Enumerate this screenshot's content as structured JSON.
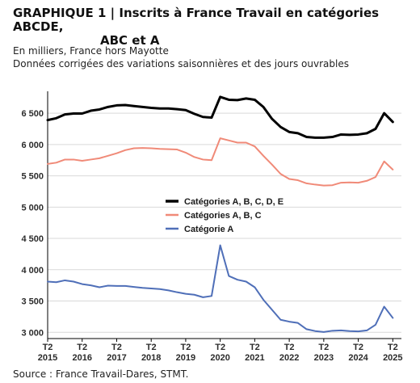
{
  "header": {
    "title_line1": "GRAPHIQUE 1 | Inscrits à France Travail en catégories ABCDE,",
    "title_line2": "ABC et A",
    "subtitle_line1": "En milliers, France hors Mayotte",
    "subtitle_line2": "Données corrigées des variations saisonnières et des jours ouvrables"
  },
  "footer": {
    "source": "Source : France Travail-Dares, STMT."
  },
  "chart_data": {
    "type": "line",
    "title": "GRAPHIQUE 1 | Inscrits à France Travail en catégories ABCDE, ABC et A",
    "xlabel": "",
    "ylabel": "",
    "ylim": [
      2900,
      6850
    ],
    "xlim": [
      2015.25,
      2025.5
    ],
    "grid": true,
    "legend_position": "center",
    "x_ticks": [
      {
        "value": 2015.25,
        "label_top": "T2",
        "label_bottom": "2015"
      },
      {
        "value": 2016.25,
        "label_top": "T2",
        "label_bottom": "2016"
      },
      {
        "value": 2017.25,
        "label_top": "T2",
        "label_bottom": "2017"
      },
      {
        "value": 2018.25,
        "label_top": "T2",
        "label_bottom": "2018"
      },
      {
        "value": 2019.25,
        "label_top": "T2",
        "label_bottom": "2019"
      },
      {
        "value": 2020.25,
        "label_top": "T2",
        "label_bottom": "2020"
      },
      {
        "value": 2021.25,
        "label_top": "T2",
        "label_bottom": "2021"
      },
      {
        "value": 2022.25,
        "label_top": "T2",
        "label_bottom": "2022"
      },
      {
        "value": 2023.25,
        "label_top": "T2",
        "label_bottom": "2023"
      },
      {
        "value": 2024.25,
        "label_top": "T2",
        "label_bottom": "2024"
      },
      {
        "value": 2025.25,
        "label_top": "T2",
        "label_bottom": "2025"
      }
    ],
    "y_ticks": [
      {
        "value": 3000,
        "label": "3 000"
      },
      {
        "value": 3500,
        "label": "3 500"
      },
      {
        "value": 4000,
        "label": "4 000"
      },
      {
        "value": 4500,
        "label": "4 500"
      },
      {
        "value": 5000,
        "label": "5 000"
      },
      {
        "value": 5500,
        "label": "5 500"
      },
      {
        "value": 6000,
        "label": "6 000"
      },
      {
        "value": 6500,
        "label": "6 500"
      }
    ],
    "series": [
      {
        "name": "Catégories A, B, C, D, E",
        "color": "#000000",
        "stroke_width": 3,
        "points": [
          [
            2015.25,
            6390
          ],
          [
            2015.5,
            6420
          ],
          [
            2015.75,
            6480
          ],
          [
            2016.0,
            6495
          ],
          [
            2016.25,
            6495
          ],
          [
            2016.5,
            6540
          ],
          [
            2016.75,
            6560
          ],
          [
            2017.0,
            6600
          ],
          [
            2017.25,
            6625
          ],
          [
            2017.5,
            6630
          ],
          [
            2017.75,
            6615
          ],
          [
            2018.0,
            6600
          ],
          [
            2018.25,
            6585
          ],
          [
            2018.5,
            6575
          ],
          [
            2018.75,
            6575
          ],
          [
            2019.0,
            6565
          ],
          [
            2019.25,
            6550
          ],
          [
            2019.5,
            6490
          ],
          [
            2019.75,
            6440
          ],
          [
            2020.0,
            6430
          ],
          [
            2020.25,
            6760
          ],
          [
            2020.5,
            6715
          ],
          [
            2020.75,
            6710
          ],
          [
            2021.0,
            6735
          ],
          [
            2021.25,
            6715
          ],
          [
            2021.5,
            6600
          ],
          [
            2021.75,
            6410
          ],
          [
            2022.0,
            6280
          ],
          [
            2022.25,
            6200
          ],
          [
            2022.5,
            6180
          ],
          [
            2022.75,
            6120
          ],
          [
            2023.0,
            6110
          ],
          [
            2023.25,
            6110
          ],
          [
            2023.5,
            6120
          ],
          [
            2023.75,
            6160
          ],
          [
            2024.0,
            6155
          ],
          [
            2024.25,
            6160
          ],
          [
            2024.5,
            6180
          ],
          [
            2024.75,
            6250
          ],
          [
            2025.0,
            6500
          ],
          [
            2025.25,
            6360
          ]
        ]
      },
      {
        "name": "Catégories A, B, C",
        "color": "#f08a78",
        "stroke_width": 2,
        "points": [
          [
            2015.25,
            5690
          ],
          [
            2015.5,
            5710
          ],
          [
            2015.75,
            5760
          ],
          [
            2016.0,
            5760
          ],
          [
            2016.25,
            5740
          ],
          [
            2016.5,
            5760
          ],
          [
            2016.75,
            5780
          ],
          [
            2017.0,
            5820
          ],
          [
            2017.25,
            5860
          ],
          [
            2017.5,
            5910
          ],
          [
            2017.75,
            5940
          ],
          [
            2018.0,
            5945
          ],
          [
            2018.25,
            5940
          ],
          [
            2018.5,
            5930
          ],
          [
            2018.75,
            5925
          ],
          [
            2019.0,
            5920
          ],
          [
            2019.25,
            5870
          ],
          [
            2019.5,
            5800
          ],
          [
            2019.75,
            5760
          ],
          [
            2020.0,
            5750
          ],
          [
            2020.25,
            6100
          ],
          [
            2020.5,
            6065
          ],
          [
            2020.75,
            6030
          ],
          [
            2021.0,
            6030
          ],
          [
            2021.25,
            5970
          ],
          [
            2021.5,
            5820
          ],
          [
            2021.75,
            5680
          ],
          [
            2022.0,
            5530
          ],
          [
            2022.25,
            5450
          ],
          [
            2022.5,
            5430
          ],
          [
            2022.75,
            5380
          ],
          [
            2023.0,
            5360
          ],
          [
            2023.25,
            5345
          ],
          [
            2023.5,
            5350
          ],
          [
            2023.75,
            5390
          ],
          [
            2024.0,
            5395
          ],
          [
            2024.25,
            5390
          ],
          [
            2024.5,
            5420
          ],
          [
            2024.75,
            5480
          ],
          [
            2025.0,
            5730
          ],
          [
            2025.25,
            5600
          ]
        ]
      },
      {
        "name": "Catégorie A",
        "color": "#4f6fb8",
        "stroke_width": 2,
        "points": [
          [
            2015.25,
            3810
          ],
          [
            2015.5,
            3800
          ],
          [
            2015.75,
            3830
          ],
          [
            2016.0,
            3810
          ],
          [
            2016.25,
            3770
          ],
          [
            2016.5,
            3750
          ],
          [
            2016.75,
            3720
          ],
          [
            2017.0,
            3745
          ],
          [
            2017.25,
            3740
          ],
          [
            2017.5,
            3740
          ],
          [
            2017.75,
            3725
          ],
          [
            2018.0,
            3710
          ],
          [
            2018.25,
            3700
          ],
          [
            2018.5,
            3690
          ],
          [
            2018.75,
            3670
          ],
          [
            2019.0,
            3640
          ],
          [
            2019.25,
            3615
          ],
          [
            2019.5,
            3600
          ],
          [
            2019.75,
            3560
          ],
          [
            2020.0,
            3580
          ],
          [
            2020.25,
            4390
          ],
          [
            2020.5,
            3900
          ],
          [
            2020.75,
            3840
          ],
          [
            2021.0,
            3810
          ],
          [
            2021.25,
            3720
          ],
          [
            2021.5,
            3520
          ],
          [
            2021.75,
            3360
          ],
          [
            2022.0,
            3200
          ],
          [
            2022.25,
            3170
          ],
          [
            2022.5,
            3150
          ],
          [
            2022.75,
            3050
          ],
          [
            2023.0,
            3020
          ],
          [
            2023.25,
            3005
          ],
          [
            2023.5,
            3025
          ],
          [
            2023.75,
            3030
          ],
          [
            2024.0,
            3020
          ],
          [
            2024.25,
            3015
          ],
          [
            2024.5,
            3030
          ],
          [
            2024.75,
            3120
          ],
          [
            2025.0,
            3410
          ],
          [
            2025.25,
            3230
          ]
        ]
      }
    ]
  }
}
